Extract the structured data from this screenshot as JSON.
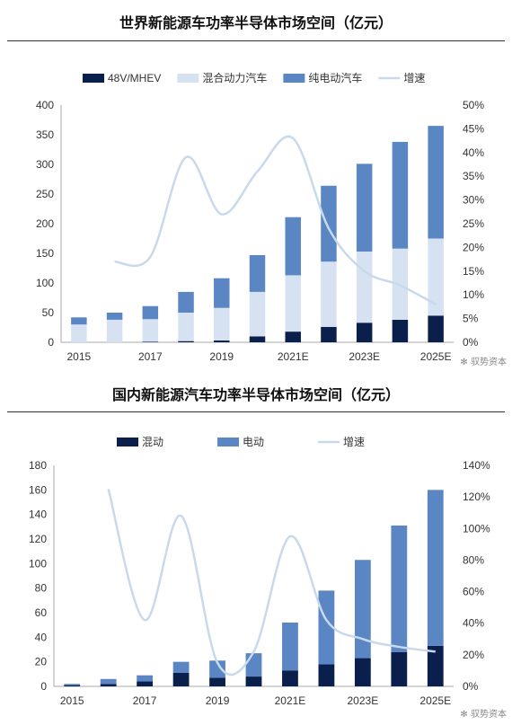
{
  "charts": [
    {
      "title": "世界新能源车功率半导体市场空间（亿元）",
      "watermark": "驭势资本",
      "chart_data": {
        "type": "bar",
        "stacked": true,
        "categories": [
          "2015",
          "2016",
          "2017",
          "2018",
          "2019",
          "2020",
          "2021E",
          "2022E",
          "2023E",
          "2024E",
          "2025E"
        ],
        "x_tick_labels": [
          "2015",
          "2017",
          "2019",
          "2021E",
          "2023E",
          "2025E"
        ],
        "ylim": [
          0,
          400
        ],
        "y_ticks": [
          0,
          50,
          100,
          150,
          200,
          250,
          300,
          350,
          400
        ],
        "y2lim": [
          0,
          0.5
        ],
        "y2_ticks": [
          "0%",
          "5%",
          "10%",
          "15%",
          "20%",
          "25%",
          "30%",
          "35%",
          "40%",
          "45%",
          "50%"
        ],
        "legend_position": "top",
        "series": [
          {
            "name": "48V/MHEV",
            "color": "#0b1f4d",
            "values": [
              0,
              0,
              1,
              2,
              3,
              10,
              18,
              26,
              33,
              38,
              45
            ]
          },
          {
            "name": "混合动力汽车",
            "color": "#d6e2f1",
            "values": [
              30,
              38,
              38,
              48,
              55,
              75,
              95,
              110,
              120,
              120,
              130
            ]
          },
          {
            "name": "纯电动汽车",
            "color": "#5b86c4",
            "values": [
              12,
              12,
              22,
              35,
              50,
              62,
              98,
              128,
              148,
              180,
              190
            ]
          },
          {
            "name": "增速",
            "color": "#c9d9ec",
            "type": "line",
            "axis": "right",
            "x": [
              "2016",
              "2017",
              "2018",
              "2019",
              "2020",
              "2021E",
              "2022E",
              "2023E",
              "2024E",
              "2025E"
            ],
            "values": [
              0.17,
              0.18,
              0.39,
              0.27,
              0.36,
              0.43,
              0.24,
              0.15,
              0.12,
              0.08
            ]
          }
        ]
      }
    },
    {
      "title": "国内新能源汽车功率半导体市场空间（亿元）",
      "watermark": "驭势资本",
      "chart_data": {
        "type": "bar",
        "stacked": true,
        "categories": [
          "2015",
          "2016",
          "2017",
          "2018",
          "2019",
          "2020",
          "2021E",
          "2022E",
          "2023E",
          "2024E",
          "2025E"
        ],
        "x_tick_labels": [
          "2015",
          "2017",
          "2019",
          "2021E",
          "2023E",
          "2025E"
        ],
        "ylim": [
          0,
          180
        ],
        "y_ticks": [
          0,
          20,
          40,
          60,
          80,
          100,
          120,
          140,
          160,
          180
        ],
        "y2lim": [
          0,
          1.4
        ],
        "y2_ticks": [
          "0%",
          "20%",
          "40%",
          "60%",
          "80%",
          "100%",
          "120%",
          "140%"
        ],
        "legend_position": "top",
        "series": [
          {
            "name": "混动",
            "color": "#0b1f4d",
            "values": [
              1,
              2,
              4,
              11,
              7,
              8,
              13,
              18,
              23,
              28,
              33
            ]
          },
          {
            "name": "电动",
            "color": "#5b86c4",
            "values": [
              1,
              4,
              5,
              9,
              14,
              19,
              39,
              60,
              80,
              103,
              127
            ]
          },
          {
            "name": "增速",
            "color": "#c9d9ec",
            "type": "line",
            "axis": "right",
            "x": [
              "2016",
              "2017",
              "2018",
              "2019",
              "2020",
              "2021E",
              "2022E",
              "2023E",
              "2024E",
              "2025E"
            ],
            "values": [
              1.25,
              0.42,
              1.08,
              0.15,
              0.22,
              0.95,
              0.42,
              0.3,
              0.25,
              0.22
            ]
          }
        ]
      }
    }
  ]
}
